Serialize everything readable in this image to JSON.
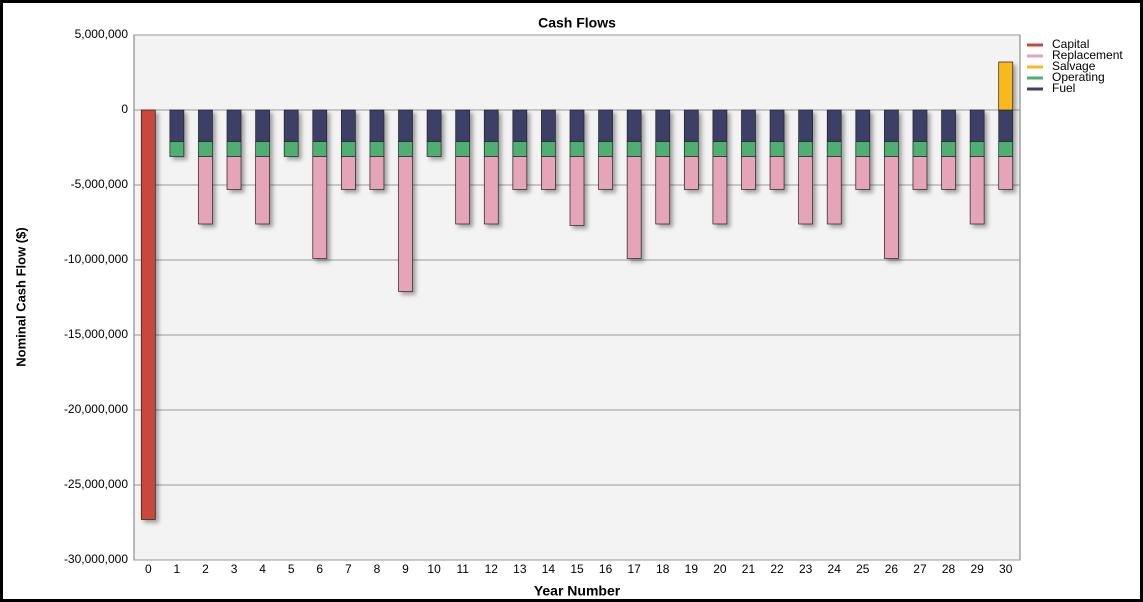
{
  "chart_data": {
    "type": "bar",
    "stacked": true,
    "title": "Cash Flows",
    "x_label": "Year Number",
    "y_label": "Nominal Cash Flow ($)",
    "categories": [
      "0",
      "1",
      "2",
      "3",
      "4",
      "5",
      "6",
      "7",
      "8",
      "9",
      "10",
      "11",
      "12",
      "13",
      "14",
      "15",
      "16",
      "17",
      "18",
      "19",
      "20",
      "21",
      "22",
      "23",
      "24",
      "25",
      "26",
      "27",
      "28",
      "29",
      "30"
    ],
    "series": [
      {
        "name": "Capital",
        "color": "#c9473a",
        "values": [
          -27300000,
          0,
          0,
          0,
          0,
          0,
          0,
          0,
          0,
          0,
          0,
          0,
          0,
          0,
          0,
          0,
          0,
          0,
          0,
          0,
          0,
          0,
          0,
          0,
          0,
          0,
          0,
          0,
          0,
          0,
          0
        ]
      },
      {
        "name": "Replacement",
        "color": "#e6a4b8",
        "values": [
          0,
          0,
          -4500000,
          -2200000,
          -4500000,
          0,
          -6800000,
          -2200000,
          -2200000,
          -9000000,
          0,
          -4500000,
          -4500000,
          -2200000,
          -2200000,
          -4600000,
          -2200000,
          -6800000,
          -4500000,
          -2200000,
          -4500000,
          -2200000,
          -2200000,
          -4500000,
          -4500000,
          -2200000,
          -6800000,
          -2200000,
          -2200000,
          -4500000,
          -2200000
        ]
      },
      {
        "name": "Salvage",
        "color": "#f8b91c",
        "values": [
          0,
          0,
          0,
          0,
          0,
          0,
          0,
          0,
          0,
          0,
          0,
          0,
          0,
          0,
          0,
          0,
          0,
          0,
          0,
          0,
          0,
          0,
          0,
          0,
          0,
          0,
          0,
          0,
          0,
          0,
          3200000
        ]
      },
      {
        "name": "Operating",
        "color": "#4fae72",
        "values": [
          0,
          -1000000,
          -1000000,
          -1000000,
          -1000000,
          -1000000,
          -1000000,
          -1000000,
          -1000000,
          -1000000,
          -1000000,
          -1000000,
          -1000000,
          -1000000,
          -1000000,
          -1000000,
          -1000000,
          -1000000,
          -1000000,
          -1000000,
          -1000000,
          -1000000,
          -1000000,
          -1000000,
          -1000000,
          -1000000,
          -1000000,
          -1000000,
          -1000000,
          -1000000,
          -1000000
        ]
      },
      {
        "name": "Fuel",
        "color": "#3c4066",
        "values": [
          0,
          -2100000,
          -2100000,
          -2100000,
          -2100000,
          -2100000,
          -2100000,
          -2100000,
          -2100000,
          -2100000,
          -2100000,
          -2100000,
          -2100000,
          -2100000,
          -2100000,
          -2100000,
          -2100000,
          -2100000,
          -2100000,
          -2100000,
          -2100000,
          -2100000,
          -2100000,
          -2100000,
          -2100000,
          -2100000,
          -2100000,
          -2100000,
          -2100000,
          -2100000,
          -2100000
        ]
      }
    ],
    "ylim": [
      -30000000,
      5000000
    ],
    "yticks": [
      {
        "value": -30000000,
        "label": "-30,000,000"
      },
      {
        "value": -25000000,
        "label": "-25,000,000"
      },
      {
        "value": -20000000,
        "label": "-20,000,000"
      },
      {
        "value": -15000000,
        "label": "-15,000,000"
      },
      {
        "value": -10000000,
        "label": "-10,000,000"
      },
      {
        "value": -5000000,
        "label": "-5,000,000"
      },
      0,
      {
        "value": 5000000,
        "label": "5,000,000"
      }
    ],
    "grid": true,
    "legend": "right"
  }
}
